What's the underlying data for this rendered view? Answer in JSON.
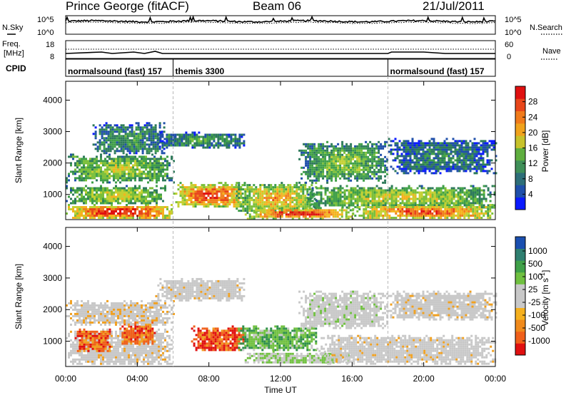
{
  "header": {
    "station": "Prince George (fitACF)",
    "beam": "Beam 06",
    "date": "21/Jul/2011"
  },
  "colors": {
    "frame": "#000000",
    "mode_divider": "#b8b8b8"
  },
  "noise_panel": {
    "left_label": "N.Sky",
    "right_label": "N.Search",
    "left_ticks": [
      "10^5",
      "10^0"
    ],
    "right_ticks": [
      "10^5",
      "10^0"
    ],
    "sky_level": 0.7,
    "search_level": 0.62
  },
  "freq_panel": {
    "left_label_1": "Freq.",
    "left_label_2": "[MHz]",
    "right_label": "Nave",
    "left_ticks": [
      "18",
      "8"
    ],
    "right_ticks": [
      "60",
      "0"
    ]
  },
  "cpid_panel": {
    "label": "CPID",
    "modes": [
      {
        "name": "normalsound (fast) 157",
        "start": 0,
        "end": 6
      },
      {
        "name": "themis 3300",
        "start": 6,
        "end": 18
      },
      {
        "name": "normalsound (fast) 157",
        "start": 18,
        "end": 24
      }
    ]
  },
  "x_axis": {
    "label": "Time UT",
    "ticks": [
      "00:00",
      "04:00",
      "08:00",
      "12:00",
      "16:00",
      "20:00",
      "00:00"
    ],
    "range_hours": [
      0,
      24
    ]
  },
  "chart_data": [
    {
      "type": "heatmap",
      "quantity": "power",
      "ylabel": "Slant Range [km]",
      "yticks": [
        "1000",
        "2000",
        "3000",
        "4000"
      ],
      "ylim_km": [
        200,
        4600
      ],
      "colorbar_label": "Power [dB]",
      "colorbar_ticks": [
        "4",
        "8",
        "12",
        "16",
        "20",
        "24",
        "28"
      ],
      "colorbar_range": [
        0,
        32
      ],
      "colorscale": [
        "#0a1aff",
        "#1f4faa",
        "#2d7a5a",
        "#3f9f48",
        "#7bbf3a",
        "#c4d032",
        "#f5b21e",
        "#f0801c",
        "#e8461a",
        "#e01010"
      ],
      "bands": [
        {
          "t": [
            0.0,
            6.0
          ],
          "r": [
            250,
            700
          ],
          "level": 0.85
        },
        {
          "t": [
            0.0,
            5.6
          ],
          "r": [
            700,
            1300
          ],
          "level": 0.5
        },
        {
          "t": [
            0.0,
            6.0
          ],
          "r": [
            1400,
            2300
          ],
          "level": 0.45
        },
        {
          "t": [
            1.5,
            5.5
          ],
          "r": [
            2300,
            3300
          ],
          "level": 0.3
        },
        {
          "t": [
            5.0,
            10.0
          ],
          "r": [
            2500,
            3000
          ],
          "level": 0.3
        },
        {
          "t": [
            6.0,
            10.0
          ],
          "r": [
            600,
            1400
          ],
          "level": 0.78
        },
        {
          "t": [
            9.5,
            14.0
          ],
          "r": [
            400,
            1400
          ],
          "level": 0.6
        },
        {
          "t": [
            10.0,
            16.0
          ],
          "r": [
            250,
            600
          ],
          "level": 0.82
        },
        {
          "t": [
            13.0,
            18.0
          ],
          "r": [
            1400,
            2700
          ],
          "level": 0.4
        },
        {
          "t": [
            13.5,
            24.0
          ],
          "r": [
            600,
            1300
          ],
          "level": 0.5
        },
        {
          "t": [
            16.0,
            24.0
          ],
          "r": [
            250,
            700
          ],
          "level": 0.75
        },
        {
          "t": [
            18.0,
            24.0
          ],
          "r": [
            1700,
            2800
          ],
          "level": 0.25
        }
      ]
    },
    {
      "type": "heatmap",
      "quantity": "velocity",
      "ylabel": "Slant Range [km]",
      "yticks": [
        "1000",
        "2000",
        "3000",
        "4000"
      ],
      "ylim_km": [
        200,
        4600
      ],
      "colorbar_label": "Velocity [m s^-1]",
      "colorbar_ticks": [
        "1000",
        "500",
        "100",
        "25",
        "-25",
        "-100",
        "-500",
        "-1000"
      ],
      "colorscale": [
        "#e01010",
        "#f0601a",
        "#f0a020",
        "#c8c8c8",
        "#c8c8c8",
        "#70c040",
        "#2f8f4a",
        "#1a4fb0"
      ],
      "bands": [
        {
          "t": [
            0.0,
            6.0
          ],
          "r": [
            250,
            1400
          ],
          "level": 0.48
        },
        {
          "t": [
            0.5,
            2.5
          ],
          "r": [
            700,
            1400
          ],
          "level": 0.18
        },
        {
          "t": [
            3.0,
            5.0
          ],
          "r": [
            900,
            1700
          ],
          "level": 0.2
        },
        {
          "t": [
            0.0,
            6.0
          ],
          "r": [
            1500,
            2300
          ],
          "level": 0.45
        },
        {
          "t": [
            5.0,
            10.0
          ],
          "r": [
            2300,
            3000
          ],
          "level": 0.48
        },
        {
          "t": [
            7.0,
            10.0
          ],
          "r": [
            700,
            1500
          ],
          "level": 0.15
        },
        {
          "t": [
            9.5,
            14.0
          ],
          "r": [
            700,
            1500
          ],
          "level": 0.72
        },
        {
          "t": [
            10.0,
            16.0
          ],
          "r": [
            300,
            700
          ],
          "level": 0.62
        },
        {
          "t": [
            13.0,
            18.0
          ],
          "r": [
            1400,
            2600
          ],
          "level": 0.52
        },
        {
          "t": [
            14.0,
            24.0
          ],
          "r": [
            300,
            1200
          ],
          "level": 0.48
        },
        {
          "t": [
            18.0,
            24.0
          ],
          "r": [
            1700,
            2600
          ],
          "level": 0.48
        }
      ]
    }
  ]
}
